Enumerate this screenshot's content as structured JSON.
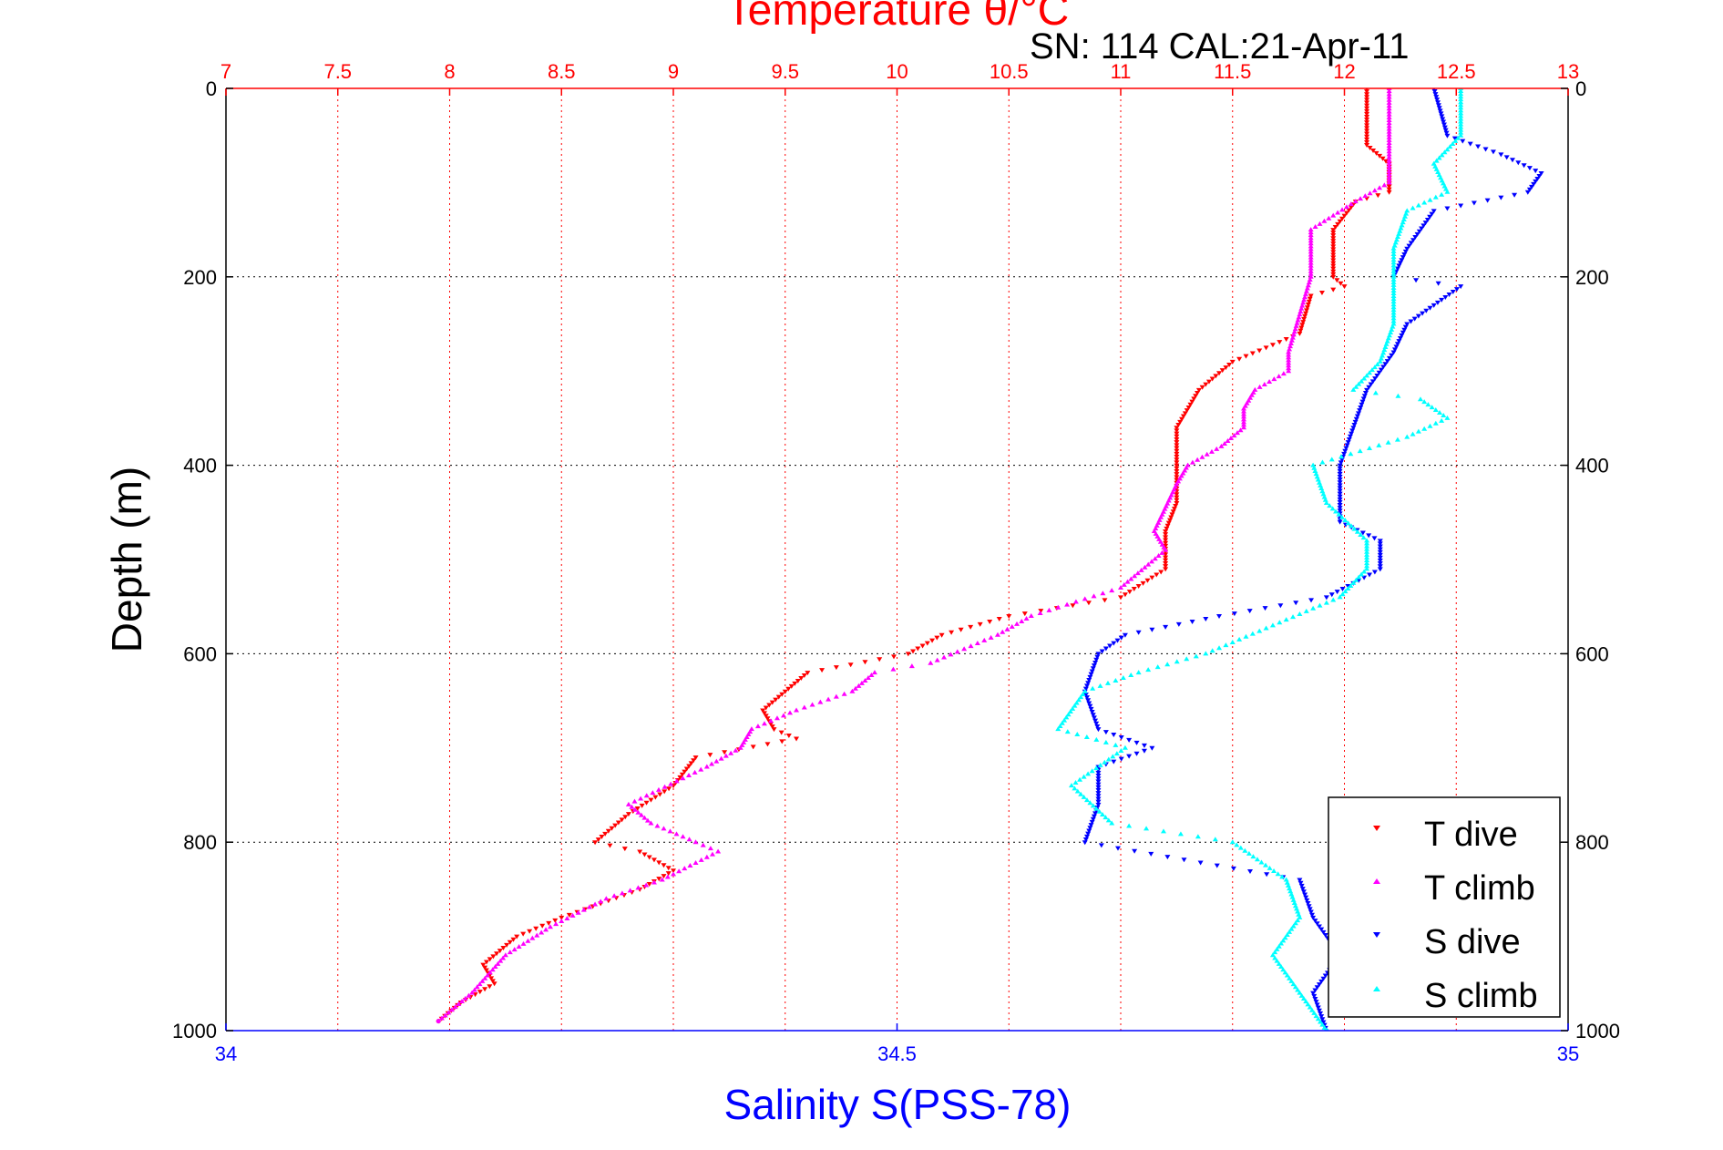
{
  "chart_data": {
    "type": "scatter",
    "title_top": "Temperature θ/°C",
    "title_annotation": "SN: 114  CAL:21-Apr-11",
    "ylabel": "Depth (m)",
    "xlabel_bottom": "Salinity S(PSS-78)",
    "colors": {
      "temperature_axis": "#ff0000",
      "salinity_axis": "#0000ff",
      "t_dive": "#ff0000",
      "t_climb": "#ff00ff",
      "s_dive": "#0000ff",
      "s_climb": "#00ffff"
    },
    "y_axis": {
      "range": [
        0,
        1000
      ],
      "reversed": true,
      "ticks": [
        "0",
        "200",
        "400",
        "600",
        "800",
        "1000"
      ]
    },
    "top_axis": {
      "range": [
        7,
        13
      ],
      "ticks": [
        "7",
        "7.5",
        "8",
        "8.5",
        "9",
        "9.5",
        "10",
        "10.5",
        "11",
        "11.5",
        "12",
        "12.5",
        "13"
      ]
    },
    "bottom_axis": {
      "range": [
        34,
        35
      ],
      "ticks": [
        "34",
        "34.5",
        "35"
      ]
    },
    "grid": true,
    "legend": {
      "position": "bottom-right",
      "items": [
        {
          "label": "T dive",
          "series": "t_dive",
          "marker": "triangle-down"
        },
        {
          "label": "T climb",
          "series": "t_climb",
          "marker": "triangle-up"
        },
        {
          "label": "S dive",
          "series": "s_dive",
          "marker": "triangle-down"
        },
        {
          "label": "S climb",
          "series": "s_climb",
          "marker": "triangle-up"
        }
      ]
    },
    "series": [
      {
        "name": "T dive",
        "key": "t_dive",
        "axis": "temperature",
        "points": [
          [
            0,
            12.1
          ],
          [
            60,
            12.1
          ],
          [
            80,
            12.2
          ],
          [
            110,
            12.2
          ],
          [
            120,
            12.05
          ],
          [
            150,
            11.95
          ],
          [
            200,
            11.95
          ],
          [
            210,
            12.0
          ],
          [
            220,
            11.85
          ],
          [
            260,
            11.8
          ],
          [
            290,
            11.5
          ],
          [
            320,
            11.35
          ],
          [
            360,
            11.25
          ],
          [
            400,
            11.25
          ],
          [
            440,
            11.25
          ],
          [
            470,
            11.2
          ],
          [
            510,
            11.2
          ],
          [
            540,
            11.0
          ],
          [
            560,
            10.5
          ],
          [
            580,
            10.2
          ],
          [
            600,
            10.05
          ],
          [
            620,
            9.6
          ],
          [
            640,
            9.5
          ],
          [
            660,
            9.4
          ],
          [
            680,
            9.45
          ],
          [
            690,
            9.55
          ],
          [
            710,
            9.1
          ],
          [
            740,
            9.0
          ],
          [
            770,
            8.8
          ],
          [
            800,
            8.65
          ],
          [
            810,
            8.85
          ],
          [
            830,
            9.0
          ],
          [
            850,
            8.85
          ],
          [
            880,
            8.5
          ],
          [
            900,
            8.3
          ],
          [
            930,
            8.15
          ],
          [
            950,
            8.2
          ],
          [
            970,
            8.05
          ],
          [
            990,
            7.95
          ]
        ]
      },
      {
        "name": "T climb",
        "key": "t_climb",
        "axis": "temperature",
        "points": [
          [
            0,
            12.2
          ],
          [
            40,
            12.2
          ],
          [
            100,
            12.2
          ],
          [
            120,
            12.05
          ],
          [
            150,
            11.85
          ],
          [
            200,
            11.85
          ],
          [
            240,
            11.8
          ],
          [
            280,
            11.75
          ],
          [
            300,
            11.75
          ],
          [
            320,
            11.6
          ],
          [
            340,
            11.55
          ],
          [
            360,
            11.55
          ],
          [
            380,
            11.45
          ],
          [
            400,
            11.3
          ],
          [
            420,
            11.25
          ],
          [
            470,
            11.15
          ],
          [
            490,
            11.2
          ],
          [
            530,
            11.0
          ],
          [
            560,
            10.6
          ],
          [
            580,
            10.45
          ],
          [
            610,
            10.15
          ],
          [
            620,
            9.9
          ],
          [
            640,
            9.8
          ],
          [
            660,
            9.55
          ],
          [
            680,
            9.35
          ],
          [
            700,
            9.3
          ],
          [
            720,
            9.15
          ],
          [
            760,
            8.8
          ],
          [
            780,
            8.9
          ],
          [
            800,
            9.1
          ],
          [
            810,
            9.2
          ],
          [
            840,
            8.95
          ],
          [
            860,
            8.7
          ],
          [
            890,
            8.45
          ],
          [
            920,
            8.25
          ],
          [
            960,
            8.1
          ],
          [
            990,
            7.95
          ]
        ]
      },
      {
        "name": "S dive",
        "key": "s_dive",
        "axis": "salinity",
        "points": [
          [
            0,
            34.9
          ],
          [
            50,
            34.91
          ],
          [
            70,
            34.95
          ],
          [
            90,
            34.98
          ],
          [
            110,
            34.97
          ],
          [
            130,
            34.9
          ],
          [
            170,
            34.88
          ],
          [
            200,
            34.87
          ],
          [
            210,
            34.92
          ],
          [
            230,
            34.9
          ],
          [
            250,
            34.88
          ],
          [
            280,
            34.87
          ],
          [
            320,
            34.85
          ],
          [
            360,
            34.84
          ],
          [
            400,
            34.83
          ],
          [
            460,
            34.83
          ],
          [
            480,
            34.86
          ],
          [
            510,
            34.86
          ],
          [
            540,
            34.82
          ],
          [
            560,
            34.74
          ],
          [
            580,
            34.67
          ],
          [
            600,
            34.65
          ],
          [
            640,
            34.64
          ],
          [
            680,
            34.65
          ],
          [
            700,
            34.69
          ],
          [
            720,
            34.65
          ],
          [
            760,
            34.65
          ],
          [
            800,
            34.64
          ],
          [
            840,
            34.8
          ],
          [
            880,
            34.81
          ],
          [
            920,
            34.83
          ],
          [
            960,
            34.81
          ],
          [
            1000,
            34.82
          ]
        ]
      },
      {
        "name": "S climb",
        "key": "s_climb",
        "axis": "salinity",
        "points": [
          [
            0,
            34.92
          ],
          [
            50,
            34.92
          ],
          [
            80,
            34.9
          ],
          [
            110,
            34.91
          ],
          [
            130,
            34.88
          ],
          [
            170,
            34.87
          ],
          [
            200,
            34.87
          ],
          [
            250,
            34.87
          ],
          [
            290,
            34.86
          ],
          [
            320,
            34.84
          ],
          [
            330,
            34.89
          ],
          [
            350,
            34.91
          ],
          [
            370,
            34.88
          ],
          [
            400,
            34.81
          ],
          [
            440,
            34.82
          ],
          [
            480,
            34.85
          ],
          [
            510,
            34.85
          ],
          [
            540,
            34.83
          ],
          [
            570,
            34.78
          ],
          [
            600,
            34.73
          ],
          [
            620,
            34.68
          ],
          [
            640,
            34.64
          ],
          [
            680,
            34.62
          ],
          [
            700,
            34.67
          ],
          [
            740,
            34.63
          ],
          [
            780,
            34.66
          ],
          [
            800,
            34.75
          ],
          [
            840,
            34.79
          ],
          [
            880,
            34.8
          ],
          [
            920,
            34.78
          ],
          [
            960,
            34.8
          ],
          [
            1000,
            34.82
          ]
        ]
      }
    ]
  }
}
